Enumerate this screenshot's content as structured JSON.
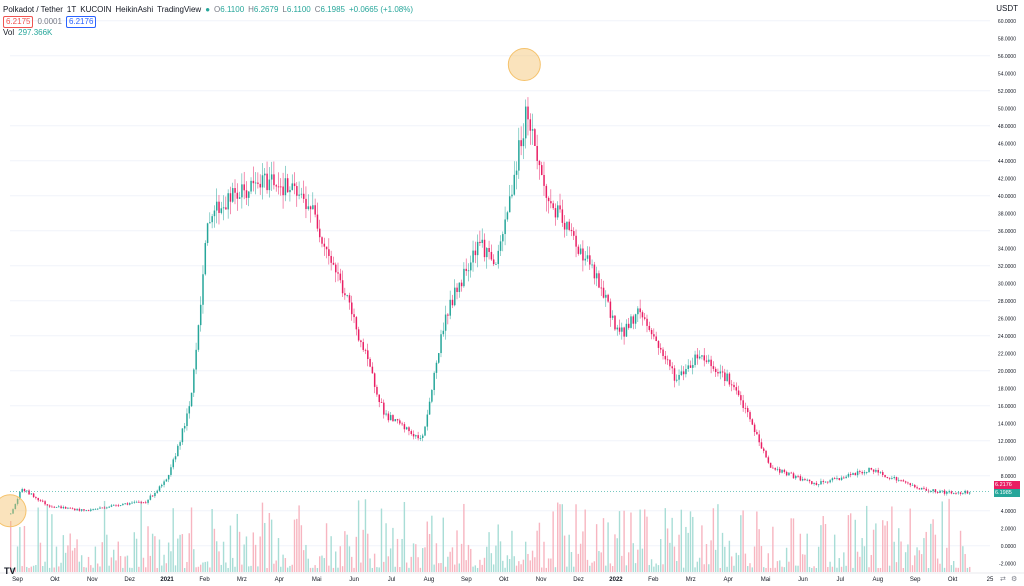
{
  "legend": {
    "symbol": "Polkadot / Tether",
    "interval": "1T",
    "exchange": "KUCOIN",
    "chart_style": "HeikinAshi",
    "platform": "TradingView",
    "open_label": "O",
    "open": "6.1100",
    "high_label": "H",
    "high": "6.2679",
    "low_label": "L",
    "low": "6.1100",
    "close_label": "C",
    "close": "6.1985",
    "change": "+0.0665 (+1.08%)",
    "bid": "6.2175",
    "spread": "0.0001",
    "ask": "6.2176",
    "vol_label": "Vol",
    "vol_value": "297.366K"
  },
  "currency": "USDT",
  "last_price_tag": "6.2176",
  "second_tag": "6.1985",
  "axis_buttons": {
    "zoom": "⇄",
    "settings": "⚙"
  },
  "colors": {
    "up": "#26a69a",
    "down": "#e91e63",
    "up_volume": "#a8ddd6",
    "down_volume": "#f7b5c0",
    "highlight": "#f5c26b"
  },
  "chart_data": {
    "type": "candlestick",
    "ylim": [
      -3,
      61
    ],
    "y_ticks": [
      "60.0000",
      "58.0000",
      "56.0000",
      "54.0000",
      "52.0000",
      "50.0000",
      "48.0000",
      "46.0000",
      "44.0000",
      "42.0000",
      "40.0000",
      "38.0000",
      "36.0000",
      "34.0000",
      "32.0000",
      "30.0000",
      "28.0000",
      "26.0000",
      "24.0000",
      "22.0000",
      "20.0000",
      "18.0000",
      "16.0000",
      "14.0000",
      "12.0000",
      "10.0000",
      "8.0000",
      "6.0000",
      "4.0000",
      "2.0000",
      "0.0000",
      "-2.0000"
    ],
    "x_labels": [
      "Sep",
      "Okt",
      "Nov",
      "Dez",
      "2021",
      "Feb",
      "Mrz",
      "Apr",
      "Mai",
      "Jun",
      "Jul",
      "Aug",
      "Sep",
      "Okt",
      "Nov",
      "Dez",
      "2022",
      "Feb",
      "Mrz",
      "Apr",
      "Mai",
      "Jun",
      "Jul",
      "Aug",
      "Sep",
      "Okt",
      "25"
    ],
    "x_label_index": [
      0.2,
      1.2,
      2.2,
      3.2,
      4.2,
      5.2,
      6.2,
      7.2,
      8.2,
      9.2,
      10.2,
      11.2,
      12.2,
      13.2,
      14.2,
      15.2,
      16.2,
      17.2,
      18.2,
      19.2,
      20.2,
      21.2,
      22.2,
      23.2,
      24.2,
      25.2,
      26.2
    ],
    "month_index": [
      0,
      1,
      2,
      3,
      4,
      5,
      6,
      7,
      8,
      9,
      10,
      11,
      12,
      13,
      14,
      15,
      16,
      17,
      18,
      19,
      20,
      21,
      22,
      23,
      24,
      25,
      25.7
    ],
    "price": [
      3.6,
      6.5,
      4.6,
      4.0,
      4.8,
      5.0,
      7.6,
      16,
      38,
      40,
      42,
      39,
      28,
      15,
      12,
      26,
      35,
      32,
      50,
      40,
      32,
      24,
      27,
      19,
      22,
      19,
      15,
      9,
      7,
      8.7,
      6.4,
      6.0,
      6.2
    ],
    "price_index": [
      0,
      0.3,
      1,
      2,
      3,
      3.6,
      4.2,
      4.8,
      5.3,
      6,
      7,
      8,
      9,
      10,
      11,
      11.6,
      12.5,
      13,
      13.8,
      14.3,
      15.5,
      16.3,
      16.8,
      17.8,
      18.4,
      19.2,
      19.7,
      20.3,
      21.5,
      23,
      24.4,
      25.2,
      25.7
    ],
    "annotations": [
      {
        "kind": "highlight",
        "index": 13.75,
        "price": 55
      },
      {
        "kind": "highlight",
        "index": 0,
        "price": 4.0
      }
    ],
    "last_price": 6.2176
  }
}
